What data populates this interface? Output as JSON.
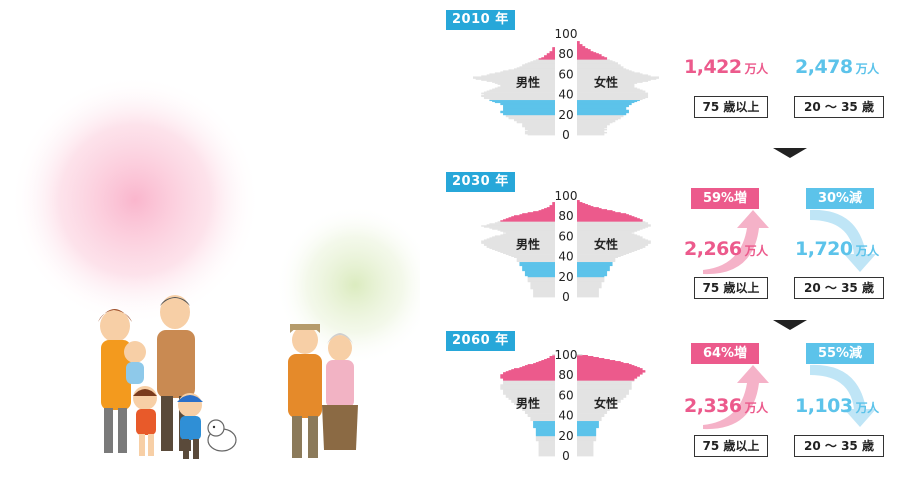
{
  "chart_data": [
    {
      "type": "population-pyramid",
      "year_label": "2010 年",
      "x_axis_ticks": [
        "100",
        "80",
        "60",
        "40",
        "20",
        "0"
      ],
      "ylim": [
        0,
        100
      ],
      "left_label": "男性",
      "right_label": "女性",
      "series": [
        {
          "name": "男性",
          "values": [
            10,
            11,
            11,
            11,
            10,
            11,
            11,
            11,
            12,
            12,
            12,
            12,
            14,
            14,
            15,
            15,
            17,
            17,
            18,
            18,
            19,
            19,
            20,
            20,
            19,
            19,
            19,
            19,
            19,
            19,
            20,
            20,
            22,
            23,
            24,
            24,
            26,
            26,
            27,
            27,
            26,
            27,
            26,
            25,
            24,
            23,
            22,
            21,
            20,
            20,
            21,
            22,
            23,
            25,
            27,
            29,
            30,
            30,
            27,
            25,
            24,
            22,
            20,
            19,
            17,
            15,
            14,
            13,
            12,
            12,
            11,
            10,
            9,
            8,
            7,
            6,
            5,
            4,
            4,
            3,
            3,
            2,
            2,
            1,
            1,
            1,
            1,
            0,
            0,
            0,
            0,
            0,
            0,
            0,
            0,
            0,
            0,
            0,
            0,
            0,
            0
          ]
        },
        {
          "name": "女性",
          "values": [
            10,
            10,
            11,
            10,
            10,
            11,
            10,
            11,
            11,
            11,
            12,
            12,
            13,
            14,
            14,
            15,
            16,
            16,
            17,
            17,
            18,
            18,
            19,
            19,
            19,
            18,
            18,
            18,
            19,
            19,
            20,
            20,
            21,
            22,
            23,
            24,
            25,
            26,
            26,
            26,
            26,
            26,
            25,
            25,
            24,
            23,
            22,
            21,
            21,
            21,
            21,
            22,
            24,
            26,
            27,
            29,
            30,
            30,
            27,
            26,
            24,
            23,
            21,
            20,
            19,
            18,
            17,
            17,
            16,
            16,
            15,
            15,
            14,
            13,
            12,
            11,
            11,
            10,
            9,
            9,
            8,
            7,
            6,
            5,
            5,
            4,
            3,
            3,
            2,
            2,
            1,
            1,
            1,
            0,
            0,
            0,
            0,
            0,
            0,
            0,
            0
          ]
        }
      ],
      "highlight_bands": [
        {
          "range": [
            75,
            100
          ],
          "color": "#ec5a8c"
        },
        {
          "range": [
            20,
            35
          ],
          "color": "#5cc3ea"
        }
      ],
      "stat_75_plus": "1,422",
      "stat_20_35": "2,478",
      "unit": "万人",
      "label_75_plus": "75 歳以上",
      "label_20_35": "20 ～ 35 歳"
    },
    {
      "type": "population-pyramid",
      "year_label": "2030 年",
      "x_axis_ticks": [
        "100",
        "80",
        "60",
        "40",
        "20",
        "0"
      ],
      "ylim": [
        0,
        100
      ],
      "left_label": "男性",
      "right_label": "女性",
      "series": [
        {
          "name": "男性",
          "values": [
            8,
            8,
            8,
            8,
            8,
            8,
            8,
            8,
            9,
            9,
            9,
            9,
            9,
            9,
            9,
            10,
            10,
            10,
            10,
            10,
            10,
            11,
            11,
            11,
            11,
            11,
            12,
            12,
            12,
            12,
            12,
            13,
            13,
            13,
            13,
            14,
            14,
            14,
            14,
            15,
            16,
            17,
            18,
            19,
            20,
            21,
            22,
            23,
            24,
            25,
            25,
            26,
            26,
            27,
            27,
            27,
            26,
            25,
            24,
            23,
            22,
            20,
            19,
            18,
            19,
            20,
            21,
            23,
            24,
            26,
            27,
            25,
            24,
            22,
            21,
            20,
            19,
            18,
            17,
            16,
            15,
            13,
            12,
            10,
            8,
            6,
            5,
            4,
            3,
            2,
            2,
            1,
            1,
            1,
            0,
            0,
            0,
            0,
            0,
            0,
            0
          ]
        },
        {
          "name": "女性",
          "values": [
            8,
            8,
            8,
            8,
            8,
            8,
            8,
            8,
            8,
            9,
            9,
            9,
            9,
            9,
            9,
            10,
            10,
            10,
            10,
            10,
            10,
            11,
            11,
            11,
            11,
            11,
            12,
            12,
            12,
            12,
            12,
            13,
            13,
            13,
            13,
            14,
            14,
            14,
            14,
            15,
            16,
            17,
            18,
            19,
            20,
            21,
            22,
            23,
            24,
            25,
            25,
            26,
            26,
            27,
            27,
            27,
            26,
            25,
            24,
            24,
            23,
            22,
            21,
            20,
            21,
            22,
            23,
            24,
            25,
            26,
            27,
            27,
            26,
            26,
            25,
            24,
            24,
            23,
            22,
            21,
            20,
            19,
            18,
            16,
            14,
            13,
            11,
            9,
            8,
            6,
            5,
            4,
            3,
            2,
            1,
            1,
            0,
            0,
            0,
            0,
            0
          ]
        }
      ],
      "highlight_bands": [
        {
          "range": [
            75,
            100
          ],
          "color": "#ec5a8c"
        },
        {
          "range": [
            20,
            35
          ],
          "color": "#5cc3ea"
        }
      ],
      "stat_75_plus": "2,266",
      "stat_20_35": "1,720",
      "unit": "万人",
      "label_75_plus": "75 歳以上",
      "label_20_35": "20 ～ 35 歳",
      "badge_75_plus": "59%増",
      "badge_20_35": "30%減"
    },
    {
      "type": "population-pyramid",
      "year_label": "2060 年",
      "x_axis_ticks": [
        "100",
        "80",
        "60",
        "40",
        "20",
        "0"
      ],
      "ylim": [
        0,
        100
      ],
      "left_label": "男性",
      "right_label": "女性",
      "series": [
        {
          "name": "男性",
          "values": [
            6,
            6,
            6,
            6,
            6,
            6,
            6,
            6,
            6,
            6,
            6,
            6,
            6,
            6,
            6,
            7,
            7,
            7,
            7,
            7,
            7,
            7,
            7,
            7,
            7,
            7,
            7,
            7,
            8,
            8,
            8,
            8,
            8,
            8,
            8,
            9,
            9,
            9,
            9,
            10,
            10,
            10,
            11,
            11,
            11,
            12,
            12,
            13,
            13,
            14,
            14,
            15,
            15,
            16,
            16,
            16,
            17,
            17,
            18,
            18,
            18,
            19,
            19,
            19,
            19,
            19,
            20,
            20,
            20,
            20,
            20,
            19,
            19,
            19,
            19,
            19,
            19,
            20,
            20,
            20,
            20,
            19,
            19,
            18,
            17,
            16,
            15,
            13,
            12,
            11,
            10,
            8,
            7,
            6,
            5,
            4,
            3,
            2,
            2,
            1,
            1
          ]
        },
        {
          "name": "女性",
          "values": [
            6,
            6,
            6,
            6,
            6,
            6,
            6,
            6,
            6,
            6,
            6,
            6,
            6,
            6,
            6,
            7,
            7,
            7,
            7,
            7,
            7,
            7,
            7,
            7,
            7,
            7,
            7,
            7,
            8,
            8,
            8,
            8,
            8,
            8,
            8,
            9,
            9,
            9,
            9,
            10,
            10,
            10,
            11,
            11,
            11,
            12,
            12,
            13,
            13,
            14,
            14,
            15,
            15,
            16,
            16,
            16,
            17,
            17,
            18,
            18,
            18,
            19,
            19,
            19,
            19,
            19,
            20,
            20,
            20,
            20,
            20,
            20,
            20,
            20,
            21,
            21,
            21,
            22,
            22,
            23,
            23,
            24,
            24,
            25,
            25,
            24,
            24,
            23,
            22,
            21,
            20,
            19,
            17,
            16,
            14,
            12,
            10,
            8,
            6,
            4,
            2
          ]
        }
      ],
      "highlight_bands": [
        {
          "range": [
            75,
            100
          ],
          "color": "#ec5a8c"
        },
        {
          "range": [
            20,
            35
          ],
          "color": "#5cc3ea"
        }
      ],
      "stat_75_plus": "2,336",
      "stat_20_35": "1,103",
      "unit": "万人",
      "label_75_plus": "75 歳以上",
      "label_20_35": "20 ～ 35 歳",
      "badge_75_plus": "64%増",
      "badge_20_35": "55%減"
    }
  ],
  "colors": {
    "pink": "#ec5a8c",
    "blue": "#5cc3ea",
    "gray": "#e3e3e3",
    "tag": "#27a7d9"
  }
}
